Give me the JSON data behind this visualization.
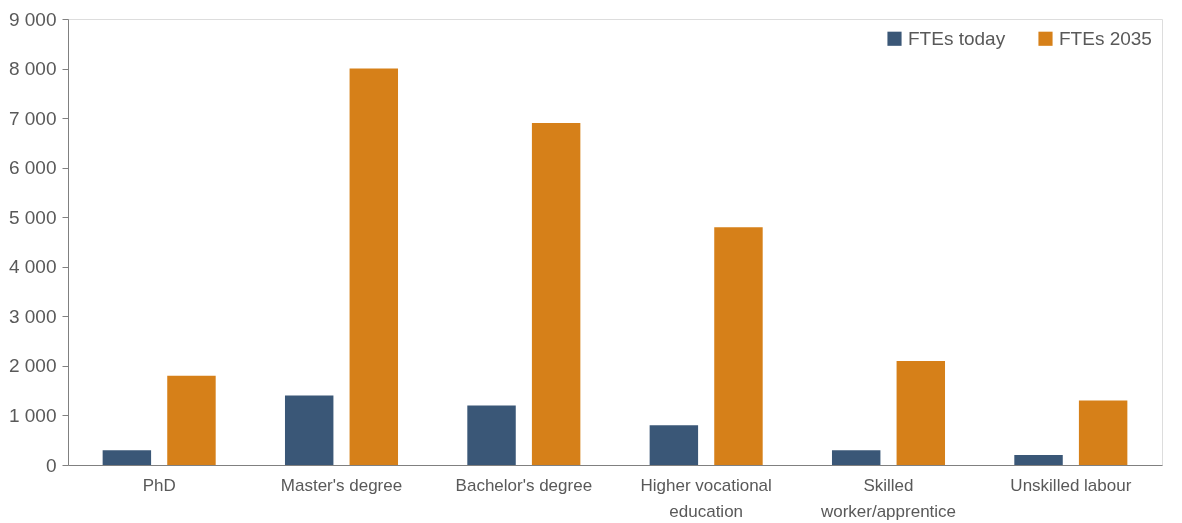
{
  "chart_data": {
    "type": "bar",
    "categories": [
      "PhD",
      "Master's degree",
      "Bachelor's degree",
      "Higher vocational education",
      "Skilled worker/apprentice",
      "Unskilled labour"
    ],
    "series": [
      {
        "name": "FTEs today",
        "color": "#3a5777",
        "values": [
          300,
          1400,
          1200,
          800,
          300,
          200
        ]
      },
      {
        "name": "FTEs 2035",
        "color": "#d68019",
        "values": [
          1800,
          8000,
          6900,
          4800,
          2100,
          1300
        ]
      }
    ],
    "ylim": [
      0,
      9000
    ],
    "yticks": [
      {
        "value": 0,
        "label": "0"
      },
      {
        "value": 1000,
        "label": "1 000"
      },
      {
        "value": 2000,
        "label": "2 000"
      },
      {
        "value": 3000,
        "label": "3 000"
      },
      {
        "value": 4000,
        "label": "4 000"
      },
      {
        "value": 5000,
        "label": "5 000"
      },
      {
        "value": 6000,
        "label": "6 000"
      },
      {
        "value": 7000,
        "label": "7 000"
      },
      {
        "value": 8000,
        "label": "8 000"
      },
      {
        "value": 9000,
        "label": "9 000"
      }
    ],
    "grid": false,
    "legend": "top right"
  }
}
